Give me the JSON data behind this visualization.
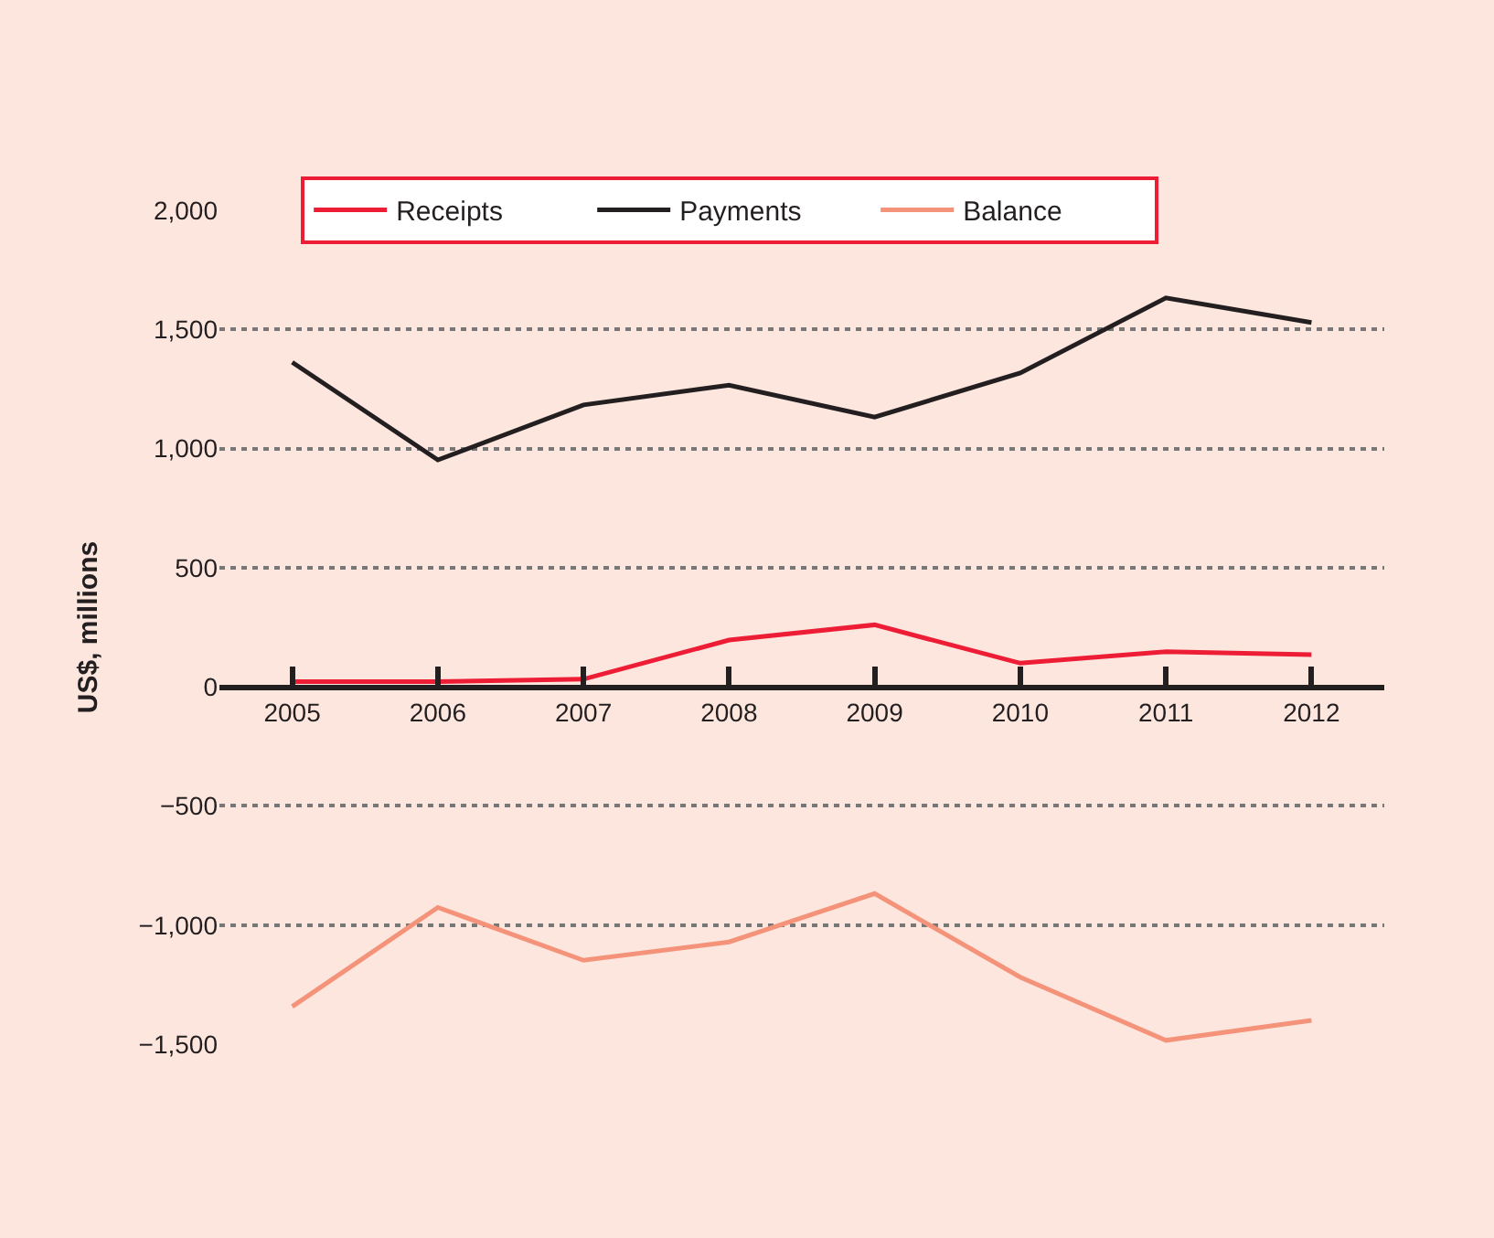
{
  "chart_data": {
    "type": "line",
    "ylabel": "US$, millions",
    "categories": [
      "2005",
      "2006",
      "2007",
      "2008",
      "2009",
      "2010",
      "2011",
      "2012"
    ],
    "series": [
      {
        "name": "Receipts",
        "color": "#ee1d36",
        "values": [
          22,
          22,
          32,
          196,
          260,
          99,
          147,
          135
        ]
      },
      {
        "name": "Payments",
        "color": "#231f20",
        "values": [
          1362,
          952,
          1183,
          1266,
          1132,
          1317,
          1632,
          1529
        ]
      },
      {
        "name": "Balance",
        "color": "#f4937a",
        "values": [
          -1342,
          -926,
          -1148,
          -1071,
          -868,
          -1219,
          -1484,
          -1400
        ]
      }
    ],
    "ylim": [
      -1500,
      2000
    ],
    "yticks": [
      {
        "value": 2000,
        "label": "2,000"
      },
      {
        "value": 1500,
        "label": "1,500"
      },
      {
        "value": 1000,
        "label": "1,000"
      },
      500,
      0,
      {
        "value": -500,
        "label": "−500"
      },
      {
        "value": -1000,
        "label": "−1,000"
      },
      {
        "value": -1500,
        "label": "−1,500"
      }
    ],
    "grid": "y",
    "legend": "top",
    "marker": "none",
    "line_style": "solid"
  }
}
